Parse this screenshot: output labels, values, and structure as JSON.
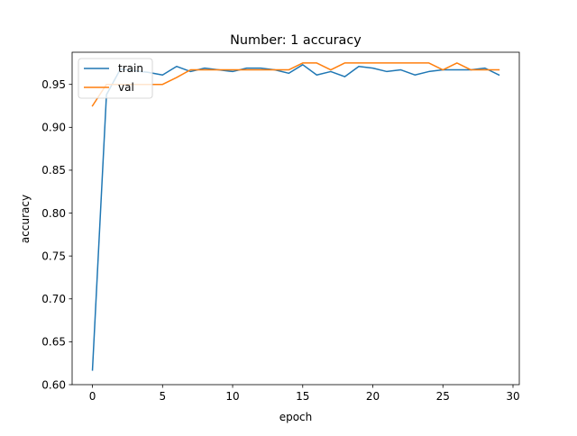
{
  "chart_data": {
    "type": "line",
    "title": "Number: 1 accuracy",
    "xlabel": "epoch",
    "ylabel": "accuracy",
    "xlim": [
      -1.45,
      30.45
    ],
    "ylim": [
      0.6,
      0.9875
    ],
    "xticks": [
      0,
      5,
      10,
      15,
      20,
      25,
      30
    ],
    "yticks": [
      0.6,
      0.65,
      0.7,
      0.75,
      0.8,
      0.85,
      0.9,
      0.95
    ],
    "xtick_labels": [
      "0",
      "5",
      "10",
      "15",
      "20",
      "25",
      "30"
    ],
    "ytick_labels": [
      "0.60",
      "0.65",
      "0.70",
      "0.75",
      "0.80",
      "0.85",
      "0.90",
      "0.95"
    ],
    "grid": false,
    "legend_position": "upper-left",
    "x": [
      0,
      1,
      2,
      3,
      4,
      5,
      6,
      7,
      8,
      9,
      10,
      11,
      12,
      13,
      14,
      15,
      16,
      17,
      18,
      19,
      20,
      21,
      22,
      23,
      24,
      25,
      26,
      27,
      28,
      29
    ],
    "series": [
      {
        "name": "train",
        "color": "#1f77b4",
        "values": [
          0.617,
          0.938,
          0.968,
          0.966,
          0.964,
          0.961,
          0.971,
          0.965,
          0.969,
          0.967,
          0.965,
          0.969,
          0.969,
          0.967,
          0.963,
          0.973,
          0.961,
          0.965,
          0.959,
          0.971,
          0.969,
          0.965,
          0.967,
          0.961,
          0.965,
          0.967,
          0.967,
          0.967,
          0.969,
          0.961
        ]
      },
      {
        "name": "val",
        "color": "#ff7f0e",
        "values": [
          0.925,
          0.95,
          0.95,
          0.95,
          0.95,
          0.95,
          0.958,
          0.967,
          0.967,
          0.967,
          0.967,
          0.967,
          0.967,
          0.967,
          0.967,
          0.975,
          0.975,
          0.967,
          0.975,
          0.975,
          0.975,
          0.975,
          0.975,
          0.975,
          0.975,
          0.967,
          0.975,
          0.967,
          0.967,
          0.967
        ]
      }
    ]
  }
}
